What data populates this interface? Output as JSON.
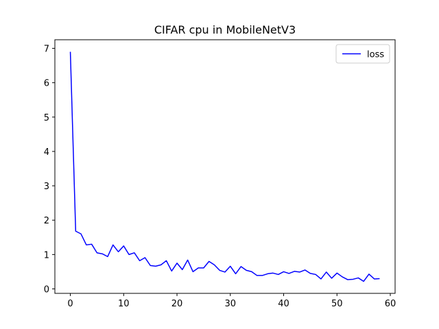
{
  "chart_data": {
    "type": "line",
    "title": "CIFAR cpu in MobileNetV3",
    "xlabel": "",
    "ylabel": "",
    "xlim": [
      -2.9,
      60.9
    ],
    "ylim": [
      -0.13,
      7.25
    ],
    "xticks": [
      0,
      10,
      20,
      30,
      40,
      50,
      60
    ],
    "yticks": [
      0,
      1,
      2,
      3,
      4,
      5,
      6,
      7
    ],
    "grid": false,
    "legend_position": "top-right",
    "series": [
      {
        "name": "loss",
        "color": "#0000ff",
        "x": [
          0,
          1,
          2,
          3,
          4,
          5,
          6,
          7,
          8,
          9,
          10,
          11,
          12,
          13,
          14,
          15,
          16,
          17,
          18,
          19,
          20,
          21,
          22,
          23,
          24,
          25,
          26,
          27,
          28,
          29,
          30,
          31,
          32,
          33,
          34,
          35,
          36,
          37,
          38,
          39,
          40,
          41,
          42,
          43,
          44,
          45,
          46,
          47,
          48,
          49,
          50,
          51,
          52,
          53,
          54,
          55,
          56,
          57,
          58
        ],
        "values": [
          6.9,
          1.68,
          1.6,
          1.28,
          1.3,
          1.05,
          1.02,
          0.94,
          1.28,
          1.08,
          1.25,
          1.0,
          1.05,
          0.82,
          0.91,
          0.68,
          0.66,
          0.7,
          0.82,
          0.52,
          0.75,
          0.56,
          0.84,
          0.5,
          0.61,
          0.61,
          0.8,
          0.7,
          0.54,
          0.49,
          0.66,
          0.44,
          0.65,
          0.54,
          0.5,
          0.39,
          0.39,
          0.44,
          0.46,
          0.42,
          0.5,
          0.45,
          0.51,
          0.49,
          0.55,
          0.45,
          0.42,
          0.29,
          0.49,
          0.31,
          0.46,
          0.35,
          0.27,
          0.28,
          0.32,
          0.22,
          0.43,
          0.29,
          0.3
        ]
      }
    ]
  }
}
